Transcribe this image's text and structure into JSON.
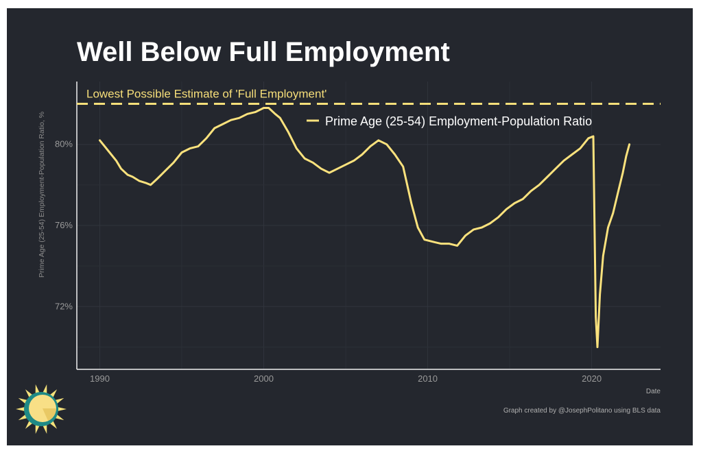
{
  "chart_data": {
    "type": "line",
    "title": "Well Below Full Employment",
    "ylabel": "Prime Age (25-54) Employment-Population Ratio, %",
    "xlabel": "Date",
    "caption": "Graph created by @JosephPolitano using BLS data",
    "xlim": [
      1988.6,
      2024.2
    ],
    "ylim": [
      68.9,
      83.1
    ],
    "x_ticks": [
      1990,
      2000,
      2010,
      2020
    ],
    "x_tick_labels": [
      "1990",
      "2000",
      "2010",
      "2020"
    ],
    "y_ticks": [
      72,
      76,
      80
    ],
    "y_tick_labels": [
      "72%",
      "76%",
      "80%"
    ],
    "grid": true,
    "legend_position": "top-right",
    "reference_line": {
      "label": "Lowest Possible Estimate of 'Full Employment'",
      "value": 82.0,
      "color": "#f7df7a",
      "style": "dashed"
    },
    "series": [
      {
        "name": "Prime Age (25-54) Employment-Population Ratio",
        "color": "#fbe27d",
        "points": [
          [
            1990.0,
            80.2
          ],
          [
            1990.3,
            79.9
          ],
          [
            1990.6,
            79.6
          ],
          [
            1991.0,
            79.2
          ],
          [
            1991.3,
            78.8
          ],
          [
            1991.7,
            78.5
          ],
          [
            1992.0,
            78.4
          ],
          [
            1992.4,
            78.2
          ],
          [
            1992.8,
            78.1
          ],
          [
            1993.1,
            78.0
          ],
          [
            1993.5,
            78.3
          ],
          [
            1994.0,
            78.7
          ],
          [
            1994.5,
            79.1
          ],
          [
            1995.0,
            79.6
          ],
          [
            1995.5,
            79.8
          ],
          [
            1996.0,
            79.9
          ],
          [
            1996.5,
            80.3
          ],
          [
            1997.0,
            80.8
          ],
          [
            1997.5,
            81.0
          ],
          [
            1998.0,
            81.2
          ],
          [
            1998.5,
            81.3
          ],
          [
            1999.0,
            81.5
          ],
          [
            1999.5,
            81.6
          ],
          [
            2000.0,
            81.8
          ],
          [
            2000.3,
            81.8
          ],
          [
            2000.7,
            81.5
          ],
          [
            2001.0,
            81.3
          ],
          [
            2001.5,
            80.6
          ],
          [
            2002.0,
            79.8
          ],
          [
            2002.5,
            79.3
          ],
          [
            2003.0,
            79.1
          ],
          [
            2003.5,
            78.8
          ],
          [
            2004.0,
            78.6
          ],
          [
            2004.5,
            78.8
          ],
          [
            2005.0,
            79.0
          ],
          [
            2005.5,
            79.2
          ],
          [
            2006.0,
            79.5
          ],
          [
            2006.5,
            79.9
          ],
          [
            2007.0,
            80.2
          ],
          [
            2007.5,
            80.0
          ],
          [
            2008.0,
            79.5
          ],
          [
            2008.5,
            78.9
          ],
          [
            2009.0,
            77.1
          ],
          [
            2009.4,
            75.9
          ],
          [
            2009.8,
            75.3
          ],
          [
            2010.3,
            75.2
          ],
          [
            2010.8,
            75.1
          ],
          [
            2011.3,
            75.1
          ],
          [
            2011.8,
            75.0
          ],
          [
            2012.3,
            75.5
          ],
          [
            2012.8,
            75.8
          ],
          [
            2013.3,
            75.9
          ],
          [
            2013.8,
            76.1
          ],
          [
            2014.3,
            76.4
          ],
          [
            2014.8,
            76.8
          ],
          [
            2015.3,
            77.1
          ],
          [
            2015.8,
            77.3
          ],
          [
            2016.3,
            77.7
          ],
          [
            2016.8,
            78.0
          ],
          [
            2017.3,
            78.4
          ],
          [
            2017.8,
            78.8
          ],
          [
            2018.3,
            79.2
          ],
          [
            2018.8,
            79.5
          ],
          [
            2019.3,
            79.8
          ],
          [
            2019.8,
            80.3
          ],
          [
            2020.1,
            80.4
          ],
          [
            2020.25,
            71.5
          ],
          [
            2020.35,
            70.0
          ],
          [
            2020.5,
            72.6
          ],
          [
            2020.7,
            74.5
          ],
          [
            2021.0,
            75.9
          ],
          [
            2021.3,
            76.6
          ],
          [
            2021.6,
            77.6
          ],
          [
            2021.9,
            78.6
          ],
          [
            2022.1,
            79.4
          ],
          [
            2022.3,
            80.0
          ]
        ]
      }
    ]
  }
}
